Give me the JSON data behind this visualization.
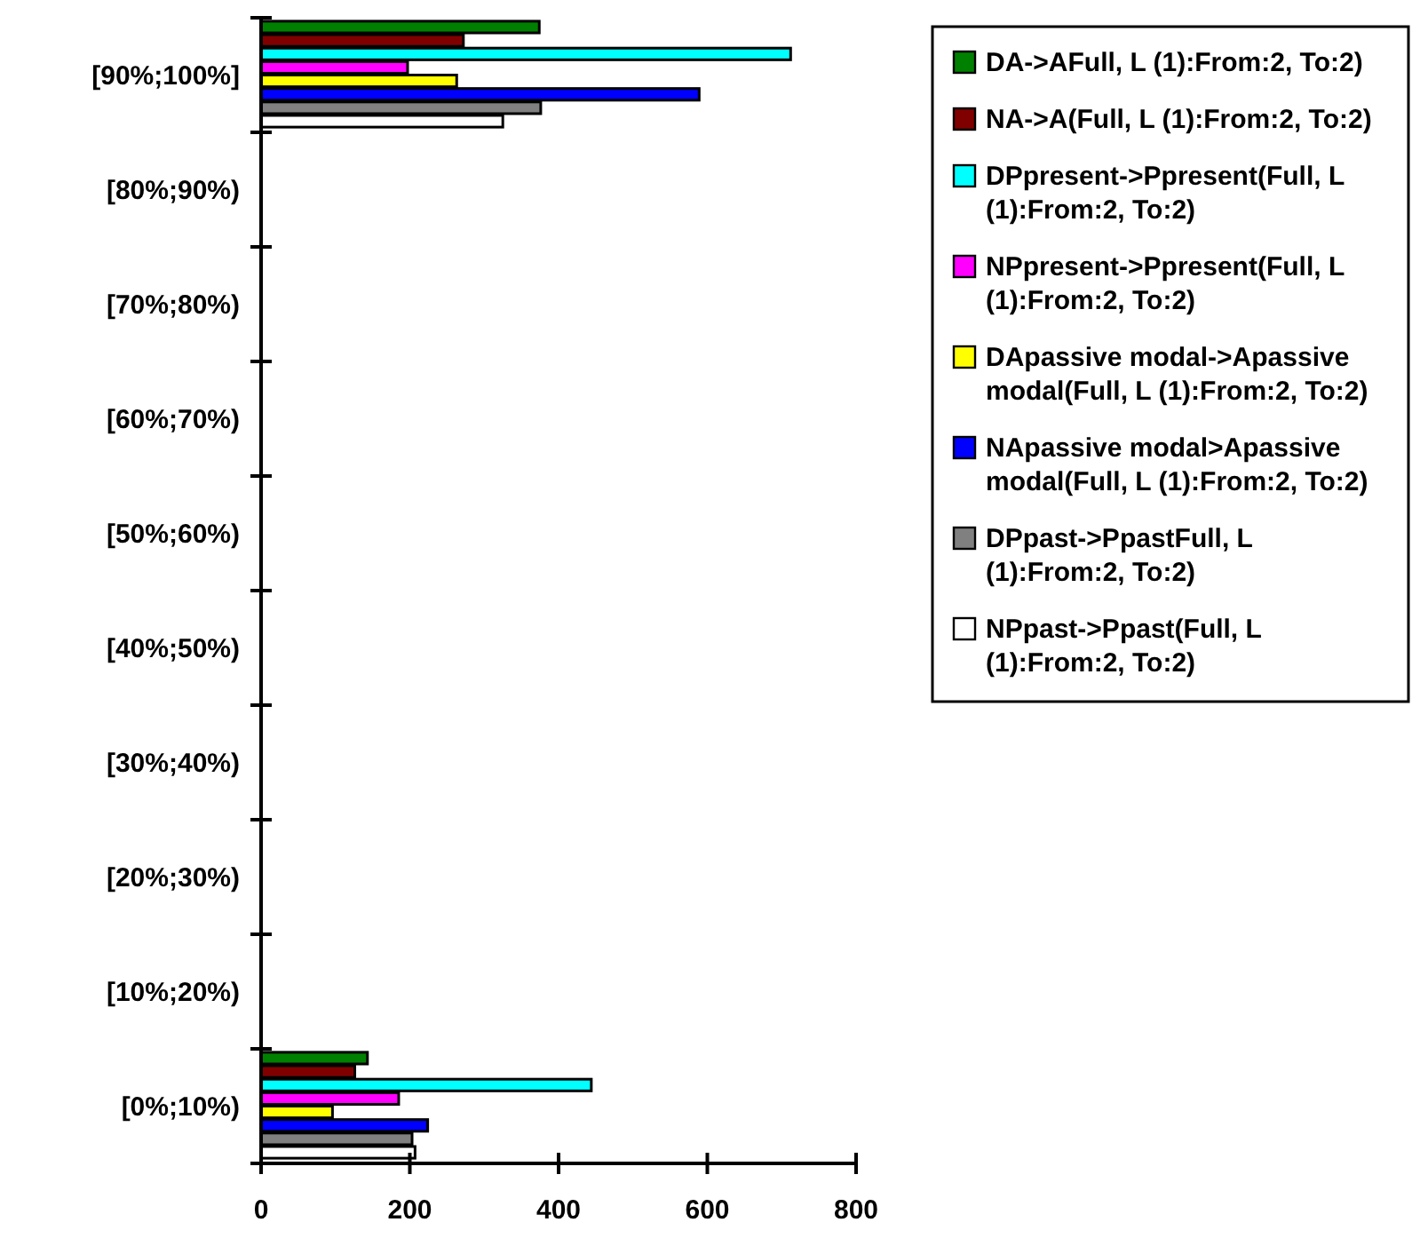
{
  "chart_data": {
    "type": "bar",
    "orientation": "horizontal",
    "categories": [
      "[90%;100%]",
      "[80%;90%)",
      "[70%;80%)",
      "[60%;70%)",
      "[50%;60%)",
      "[40%;50%)",
      "[30%;40%)",
      "[20%;30%)",
      "[10%;20%)",
      "[0%;10%)"
    ],
    "xlim": [
      0,
      800
    ],
    "xticks": [
      0,
      200,
      400,
      600,
      800
    ],
    "grid": false,
    "legend": "right",
    "series": [
      {
        "name": "DA->AFull, L (1):From:2, To:2)",
        "color": "#008000",
        "values": [
          374,
          null,
          null,
          null,
          null,
          null,
          null,
          null,
          null,
          143
        ]
      },
      {
        "name": "NA->A(Full, L (1):From:2, To:2)",
        "color": "#800000",
        "values": [
          272,
          null,
          null,
          null,
          null,
          null,
          null,
          null,
          null,
          126
        ]
      },
      {
        "name": "DPpresent->Ppresent(Full, L (1):From:2, To:2)",
        "color": "#00ffff",
        "values": [
          712,
          null,
          null,
          null,
          null,
          null,
          null,
          null,
          null,
          444
        ]
      },
      {
        "name": "NPpresent->Ppresent(Full, L (1):From:2, To:2)",
        "color": "#ff00ff",
        "values": [
          197,
          null,
          null,
          null,
          null,
          null,
          null,
          null,
          null,
          185
        ]
      },
      {
        "name": "DApassive modal->Apassive modal(Full, L (1):From:2, To:2)",
        "color": "#ffff00",
        "values": [
          263,
          null,
          null,
          null,
          null,
          null,
          null,
          null,
          null,
          96
        ]
      },
      {
        "name": "NApassive modal>Apassive modal(Full, L (1):From:2, To:2)",
        "color": "#0000ff",
        "values": [
          589,
          null,
          null,
          null,
          null,
          null,
          null,
          null,
          null,
          224
        ]
      },
      {
        "name": "DPpast->PpastFull, L (1):From:2, To:2)",
        "color": "#808080",
        "values": [
          376,
          null,
          null,
          null,
          null,
          null,
          null,
          null,
          null,
          203
        ]
      },
      {
        "name": "NPpast->Ppast(Full, L (1):From:2, To:2)",
        "color": "#ffffff",
        "values": [
          325,
          null,
          null,
          null,
          null,
          null,
          null,
          null,
          null,
          207
        ]
      }
    ]
  }
}
